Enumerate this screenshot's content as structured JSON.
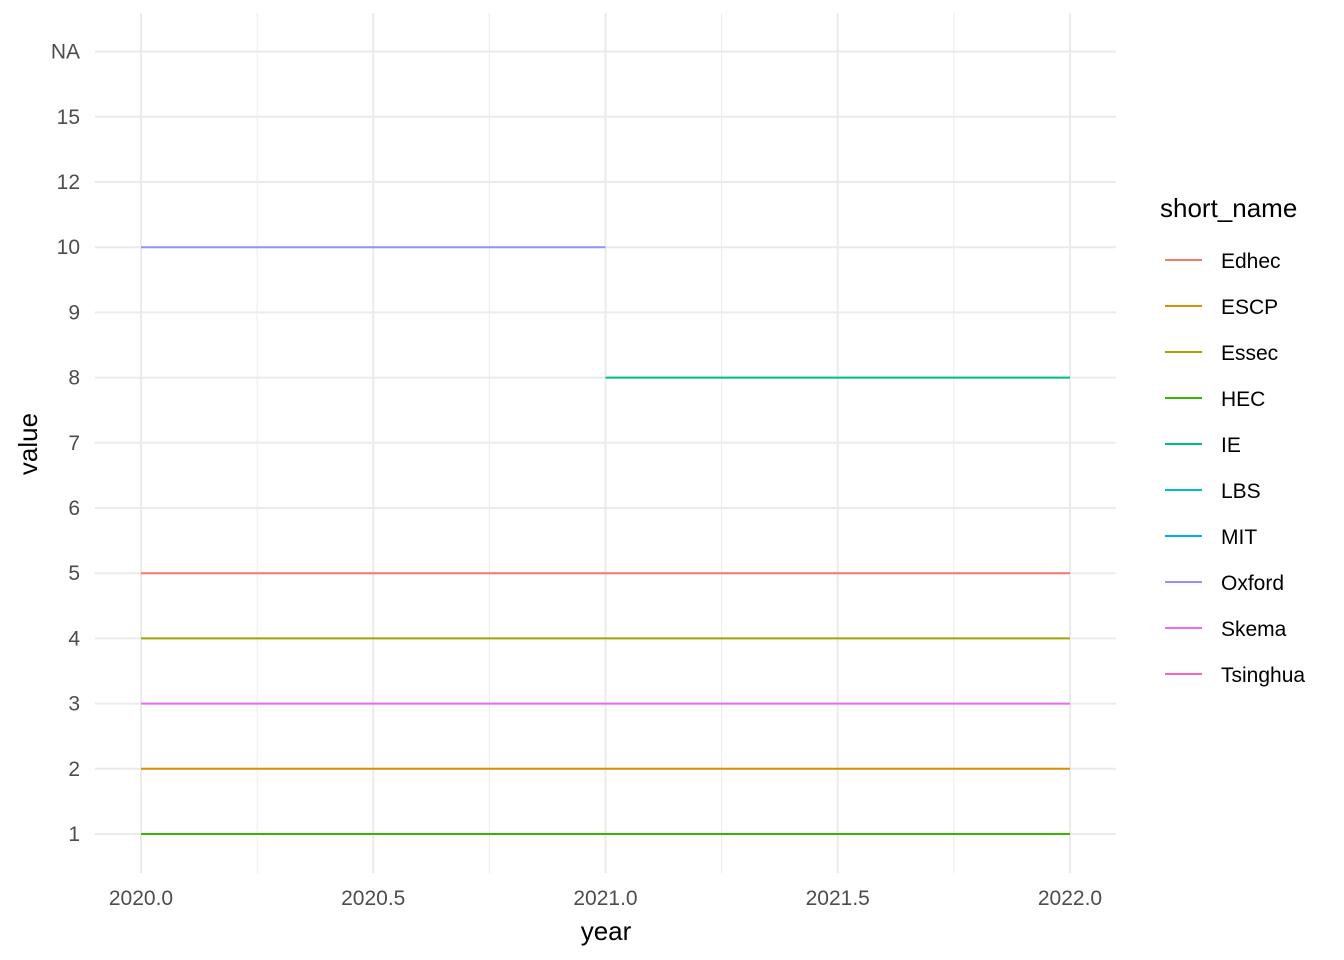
{
  "chart_data": {
    "type": "line",
    "xlabel": "year",
    "ylabel": "value",
    "x_ticks": [
      "2020.0",
      "2020.5",
      "2021.0",
      "2021.5",
      "2022.0"
    ],
    "x_tick_values": [
      2020.0,
      2020.5,
      2021.0,
      2021.5,
      2022.0
    ],
    "xlim": [
      2019.9,
      2022.1
    ],
    "y_ticks": [
      "1",
      "2",
      "3",
      "4",
      "5",
      "6",
      "7",
      "8",
      "9",
      "10",
      "12",
      "15",
      "NA"
    ],
    "y_axis_kind": "discrete",
    "grid": true,
    "legend_title": "short_name",
    "legend_position": "right",
    "series": [
      {
        "name": "Edhec",
        "color": "#F8766D",
        "points": [
          {
            "x": 2020,
            "y": "5"
          },
          {
            "x": 2021,
            "y": "5"
          },
          {
            "x": 2022,
            "y": "5"
          }
        ]
      },
      {
        "name": "ESCP",
        "color": "#D89000",
        "points": [
          {
            "x": 2020,
            "y": "2"
          },
          {
            "x": 2021,
            "y": "2"
          },
          {
            "x": 2022,
            "y": "2"
          }
        ]
      },
      {
        "name": "Essec",
        "color": "#A3A500",
        "points": [
          {
            "x": 2020,
            "y": "4"
          },
          {
            "x": 2021,
            "y": "4"
          },
          {
            "x": 2022,
            "y": "4"
          }
        ]
      },
      {
        "name": "HEC",
        "color": "#39B600",
        "points": [
          {
            "x": 2020,
            "y": "1"
          },
          {
            "x": 2021,
            "y": "1"
          },
          {
            "x": 2022,
            "y": "1"
          }
        ]
      },
      {
        "name": "IE",
        "color": "#00BF7D",
        "points": [
          {
            "x": 2021,
            "y": "8"
          },
          {
            "x": 2022,
            "y": "8"
          }
        ]
      },
      {
        "name": "LBS",
        "color": "#00BFC4",
        "points": []
      },
      {
        "name": "MIT",
        "color": "#00B0F6",
        "points": []
      },
      {
        "name": "Oxford",
        "color": "#9590FF",
        "points": [
          {
            "x": 2020,
            "y": "10"
          },
          {
            "x": 2021,
            "y": "10"
          }
        ]
      },
      {
        "name": "Skema",
        "color": "#E76BF3",
        "points": [
          {
            "x": 2020,
            "y": "3"
          },
          {
            "x": 2021,
            "y": "3"
          },
          {
            "x": 2022,
            "y": "3"
          }
        ]
      },
      {
        "name": "Tsinghua",
        "color": "#FF62BC",
        "points": []
      }
    ]
  }
}
